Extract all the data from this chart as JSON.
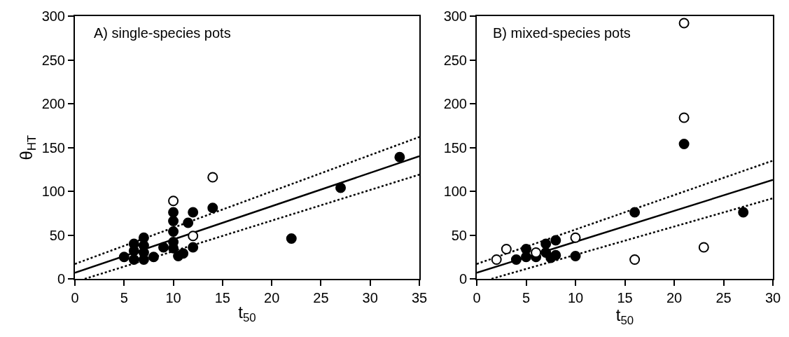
{
  "chart_data": [
    {
      "type": "scatter",
      "xlabel": "t$_{50}$",
      "ylabel": "θ$_{HT}$",
      "annotations": [
        "A) single-species pots"
      ],
      "xlim": [
        0,
        35
      ],
      "ylim": [
        0,
        300
      ],
      "xticks": [
        0,
        5,
        10,
        15,
        20,
        25,
        30,
        35
      ],
      "yticks": [
        0,
        50,
        100,
        150,
        200,
        250,
        300
      ],
      "series": [
        {
          "type": "line",
          "color": "#000000",
          "line_style": "dotted",
          "marker": "none",
          "x": [
            0,
            35
          ],
          "values": [
            17,
            162
          ]
        },
        {
          "type": "line",
          "color": "#000000",
          "line_style": "dotted",
          "marker": "none",
          "x": [
            1,
            35
          ],
          "values": [
            0,
            119
          ]
        },
        {
          "type": "line",
          "color": "#000000",
          "line_style": "solid",
          "marker": "none",
          "x": [
            0,
            35
          ],
          "values": [
            7,
            140
          ]
        },
        {
          "type": "scatter",
          "color": "#000000",
          "marker": "circle",
          "x": [
            5,
            6,
            6,
            6,
            7,
            7,
            7,
            7,
            8,
            9,
            10,
            10,
            10,
            10,
            10,
            10.5,
            11,
            11.5,
            12,
            12,
            14,
            22,
            27,
            33
          ],
          "values": [
            25,
            40,
            32,
            22,
            47,
            38,
            30,
            22,
            25,
            36,
            76,
            66,
            54,
            42,
            35,
            26,
            29,
            64,
            76,
            36,
            81,
            46,
            104,
            139
          ]
        },
        {
          "type": "scatter",
          "color": "#ffffff",
          "marker": "circle",
          "x": [
            10,
            14,
            12
          ],
          "values": [
            89,
            116,
            49
          ]
        }
      ]
    },
    {
      "type": "scatter",
      "xlabel": "t$_{50}$",
      "annotations": [
        "B) mixed-species pots"
      ],
      "xlim": [
        0,
        30
      ],
      "ylim": [
        0,
        300
      ],
      "xticks": [
        0,
        5,
        10,
        15,
        20,
        25,
        30
      ],
      "yticks": [
        0,
        50,
        100,
        150,
        200,
        250,
        300
      ],
      "series": [
        {
          "type": "line",
          "color": "#000000",
          "line_style": "dotted",
          "marker": "none",
          "x": [
            0,
            30
          ],
          "values": [
            17,
            135
          ]
        },
        {
          "type": "line",
          "color": "#000000",
          "line_style": "dotted",
          "marker": "none",
          "x": [
            1.5,
            30
          ],
          "values": [
            0,
            92
          ]
        },
        {
          "type": "line",
          "color": "#000000",
          "line_style": "solid",
          "marker": "none",
          "x": [
            0,
            30
          ],
          "values": [
            7,
            113
          ]
        },
        {
          "type": "scatter",
          "color": "#000000",
          "marker": "circle",
          "x": [
            4,
            5,
            5,
            6,
            7,
            7,
            7.5,
            8,
            8,
            10,
            16,
            21,
            27
          ],
          "values": [
            22,
            34,
            25,
            25,
            40,
            30,
            24,
            44,
            27,
            26,
            76,
            154,
            76
          ]
        },
        {
          "type": "scatter",
          "color": "#ffffff",
          "marker": "circle",
          "x": [
            2,
            3,
            6,
            10,
            16,
            21,
            21,
            23
          ],
          "values": [
            22,
            34,
            30,
            47,
            22,
            184,
            292,
            36
          ]
        }
      ]
    }
  ]
}
